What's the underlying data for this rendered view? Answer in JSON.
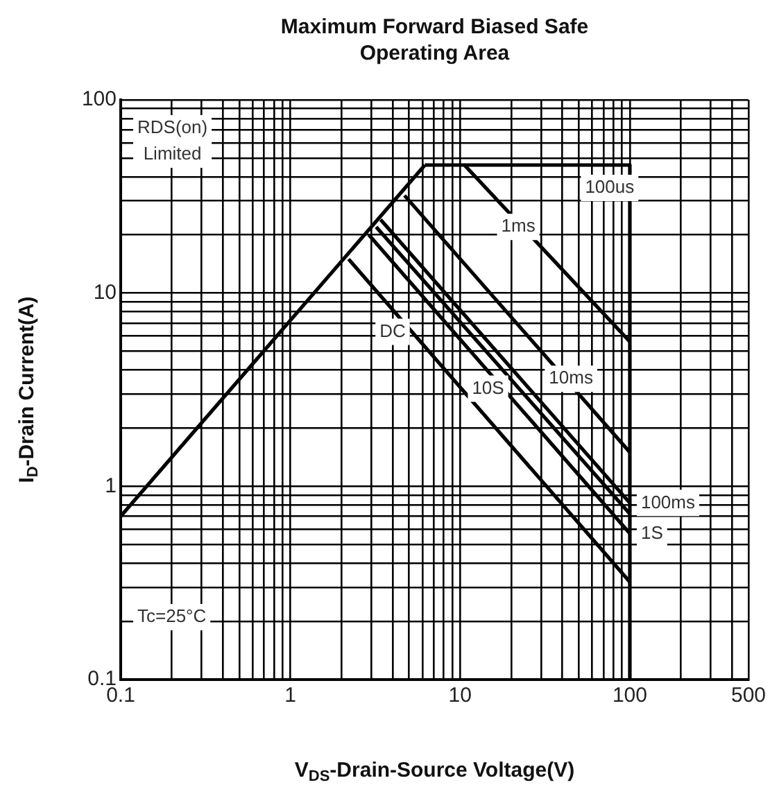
{
  "chart_data": {
    "type": "line",
    "title": "Maximum Forward Biased Safe Operating Area",
    "xlabel": "V$_{DS}$-Drain-Source Voltage(V)",
    "ylabel": "I$_{D}$-Drain Current(A)",
    "log": "xy",
    "xlim": [
      0.1,
      500
    ],
    "ylim": [
      0.1,
      100
    ],
    "xticks": [
      0.1,
      1,
      10,
      100,
      500
    ],
    "yticks": [
      0.1,
      1,
      10,
      100
    ],
    "grid": true,
    "legend": false,
    "marker": "none",
    "line_style": "solid",
    "series": [
      {
        "color": "#000000",
        "x": [
          0.1,
          6.2
        ],
        "values": [
          0.7,
          46
        ]
      },
      {
        "color": "#000000",
        "x": [
          6.2,
          100
        ],
        "values": [
          46,
          46
        ]
      },
      {
        "color": "#000000",
        "x": [
          100,
          100
        ],
        "values": [
          46,
          0.1
        ]
      },
      {
        "color": "#000000",
        "x": [
          10.6,
          100
        ],
        "values": [
          46,
          5.6
        ]
      },
      {
        "color": "#000000",
        "x": [
          4.7,
          100
        ],
        "values": [
          32,
          1.5
        ]
      },
      {
        "color": "#000000",
        "x": [
          3.4,
          100
        ],
        "values": [
          24,
          0.82
        ]
      },
      {
        "color": "#000000",
        "x": [
          3.2,
          100
        ],
        "values": [
          22,
          0.72
        ]
      },
      {
        "color": "#000000",
        "x": [
          2.9,
          100
        ],
        "values": [
          20,
          0.57
        ]
      },
      {
        "color": "#000000",
        "x": [
          2.2,
          100
        ],
        "values": [
          15,
          0.32
        ]
      }
    ],
    "annotations": [
      "RDS(on)\nLimited",
      {
        "text": "100us",
        "x": 76,
        "y": 35
      },
      {
        "text": "1ms",
        "x": 22,
        "y": 22
      },
      {
        "text": "10ms",
        "x": 45,
        "y": 3.6
      },
      {
        "text": "100ms",
        "x": 100,
        "y": 0.82
      },
      {
        "text": "1S",
        "x": 100,
        "y": 0.57
      },
      {
        "text": "10S",
        "x": 14.6,
        "y": 3.2
      },
      {
        "text": "DC",
        "x": 4.0,
        "y": 6.3
      },
      "Tc=25°C"
    ]
  }
}
